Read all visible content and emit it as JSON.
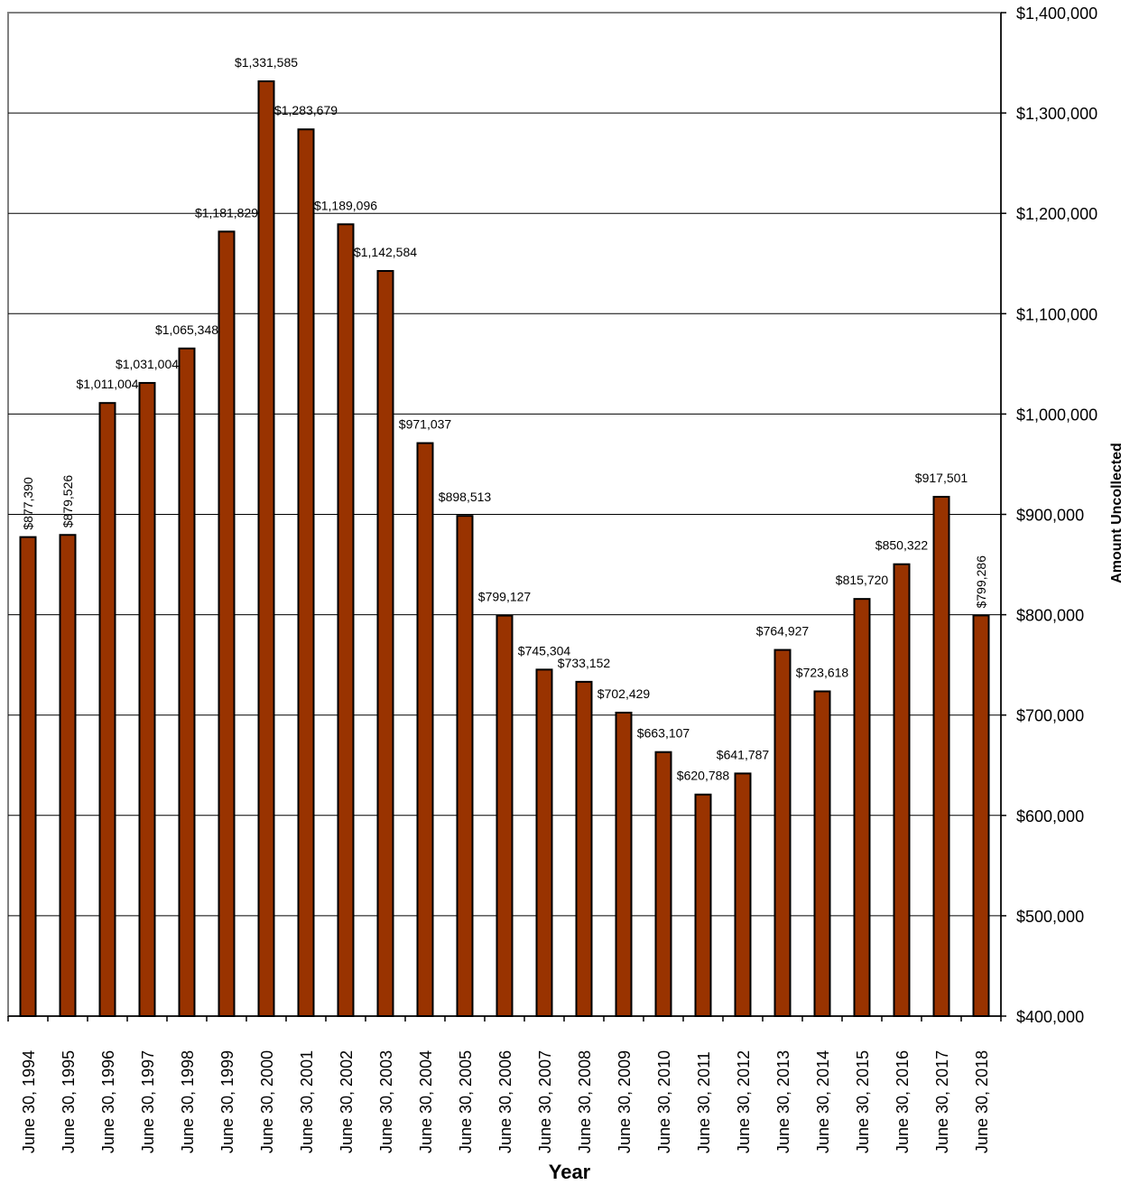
{
  "chart_data": {
    "type": "bar",
    "xlabel": "Year",
    "ylabel": "Amount Uncollected",
    "ylim": [
      400000,
      1400000
    ],
    "y_ticks": [
      400000,
      500000,
      600000,
      700000,
      800000,
      900000,
      1000000,
      1100000,
      1200000,
      1300000,
      1400000
    ],
    "y_tick_labels": [
      "$400,000",
      "$500,000",
      "$600,000",
      "$700,000",
      "$800,000",
      "$900,000",
      "$1,000,000",
      "$1,100,000",
      "$1,200,000",
      "$1,300,000",
      "$1,400,000"
    ],
    "y_axis_side": "right",
    "grid": true,
    "bar_color": "#993300",
    "categories": [
      "June 30, 1994",
      "June 30, 1995",
      "June 30, 1996",
      "June 30, 1997",
      "June 30, 1998",
      "June 30, 1999",
      "June 30, 2000",
      "June 30, 2001",
      "June 30, 2002",
      "June 30, 2003",
      "June 30, 2004",
      "June 30, 2005",
      "June 30, 2006",
      "June 30, 2007",
      "June 30, 2008",
      "June 30, 2009",
      "June 30, 2010",
      "June 30, 2011",
      "June 30, 2012",
      "June 30, 2013",
      "June 30, 2014",
      "June 30, 2015",
      "June 30, 2016",
      "June 30, 2017",
      "June 30, 2018"
    ],
    "values": [
      877390,
      879526,
      1011004,
      1031004,
      1065348,
      1181829,
      1331585,
      1283679,
      1189096,
      1142584,
      971037,
      898513,
      799127,
      745304,
      733152,
      702429,
      663107,
      620788,
      641787,
      764927,
      723618,
      815720,
      850322,
      917501,
      799286
    ],
    "data_labels": [
      "$877,390",
      "$879,526",
      "$1,011,004",
      "$1,031,004",
      "$1,065,348",
      "$1,181,829",
      "$1,331,585",
      "$1,283,679",
      "$1,189,096",
      "$1,142,584",
      "$971,037",
      "$898,513",
      "$799,127",
      "$745,304",
      "$733,152",
      "$702,429",
      "$663,107",
      "$620,788",
      "$641,787",
      "$764,927",
      "$723,618",
      "$815,720",
      "$850,322",
      "$917,501",
      "$799,286"
    ],
    "vertical_data_labels": [
      true,
      true,
      false,
      false,
      false,
      false,
      false,
      false,
      false,
      false,
      false,
      false,
      false,
      false,
      false,
      false,
      false,
      false,
      false,
      false,
      false,
      false,
      false,
      false,
      true
    ]
  }
}
